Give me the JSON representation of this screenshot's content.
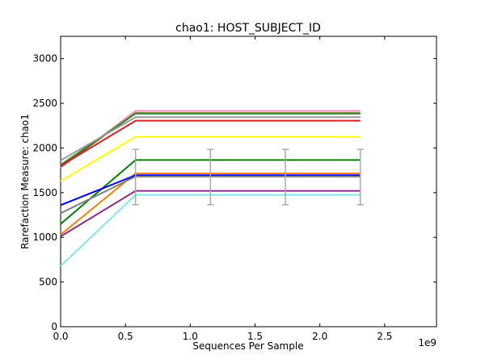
{
  "chart_data": {
    "type": "line",
    "title": "chao1: HOST_SUBJECT_ID",
    "xlabel": "Sequences Per Sample",
    "ylabel": "Rarefaction Measure: chao1",
    "x_offset_label": "1e9",
    "xlim": [
      0,
      2.9
    ],
    "ylim": [
      0,
      3250
    ],
    "xticks": [
      0.0,
      0.5,
      1.0,
      1.5,
      2.0,
      2.5
    ],
    "xtick_labels": [
      "0.0",
      "0.5",
      "1.0",
      "1.5",
      "2.0",
      "2.5"
    ],
    "yticks": [
      0,
      500,
      1000,
      1500,
      2000,
      2500,
      3000
    ],
    "ytick_labels": [
      "0",
      "500",
      "1000",
      "1500",
      "2000",
      "2500",
      "3000"
    ],
    "grid": false,
    "x": [
      0.0,
      0.578,
      1.156,
      1.734,
      2.312
    ],
    "series": [
      {
        "color": "#f08cb4",
        "values": [
          1780,
          2415,
          2415,
          2415,
          2415
        ]
      },
      {
        "color": "#8b4513",
        "values": [
          1790,
          2390,
          2390,
          2390,
          2390
        ]
      },
      {
        "color": "#2e8b2e",
        "values": [
          1810,
          2385,
          2385,
          2385,
          2385
        ]
      },
      {
        "color": "#999999",
        "values": [
          1860,
          2345,
          2345,
          2345,
          2345
        ]
      },
      {
        "color": "#e31a1c",
        "values": [
          1800,
          2305,
          2305,
          2305,
          2305
        ]
      },
      {
        "color": "#ffff00",
        "values": [
          1630,
          2125,
          2125,
          2125,
          2125
        ]
      },
      {
        "color": "#008000",
        "values": [
          1150,
          1865,
          1865,
          1865,
          1865
        ]
      },
      {
        "color": "#ff7f00",
        "values": [
          1030,
          1715,
          1715,
          1715,
          1715
        ]
      },
      {
        "color": "#0000ff",
        "values": [
          1360,
          1695,
          1695,
          1695,
          1695
        ]
      },
      {
        "color": "#808080",
        "values": [
          1270,
          1680,
          1680,
          1680,
          1680
        ]
      },
      {
        "color": "#8e2c8e",
        "values": [
          1010,
          1520,
          1520,
          1520,
          1520
        ]
      },
      {
        "color": "#7fe8e8",
        "values": [
          680,
          1475,
          1475,
          1475,
          1475
        ]
      }
    ],
    "error_bars": {
      "color": "#aaaaaa",
      "x": [
        0.578,
        1.156,
        1.734,
        2.312
      ],
      "low": [
        1365,
        1365,
        1365,
        1365
      ],
      "high": [
        1985,
        1985,
        1985,
        1985
      ]
    }
  }
}
